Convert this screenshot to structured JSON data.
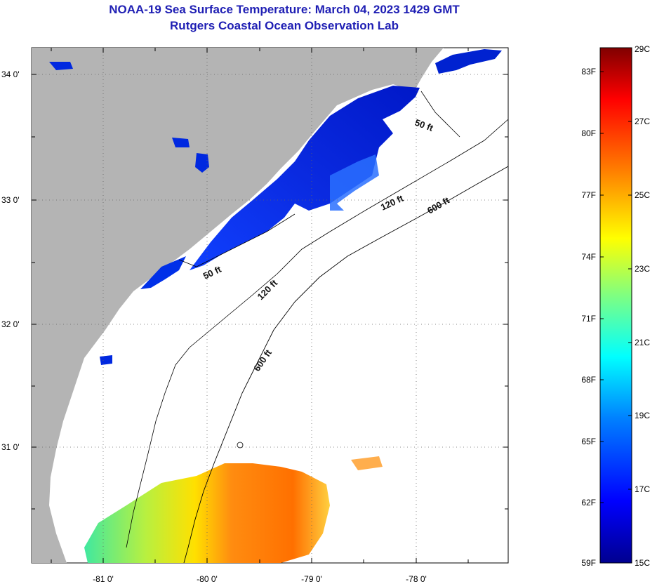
{
  "header": {
    "title": "NOAA-19 Sea Surface Temperature:  March 04, 2023 1429 GMT",
    "subtitle": "Rutgers Coastal Ocean Observation Lab"
  },
  "map": {
    "lat_labels": [
      "34 0'",
      "33 0'",
      "32 0'",
      "31 0'"
    ],
    "lon_labels": [
      "-81 0'",
      "-80 0'",
      "-79 0'",
      "-78 0'"
    ],
    "lat_values": [
      34,
      33,
      32,
      31
    ],
    "lon_values": [
      -81,
      -80,
      -79,
      -78
    ],
    "lat_range": [
      30.1,
      34.2
    ],
    "lon_range": [
      -81.65,
      -77.2
    ],
    "land_color": "#b4b4b4",
    "isobath_labels": [
      "50 ft",
      "120 ft",
      "600 ft",
      "50 ft",
      "120 ft",
      "600 ft"
    ]
  },
  "colorbar": {
    "fahrenheit_labels": [
      "83F",
      "80F",
      "77F",
      "74F",
      "71F",
      "68F",
      "65F",
      "62F",
      "59F"
    ],
    "celsius_labels": [
      "29C",
      "27C",
      "25C",
      "23C",
      "21C",
      "19C",
      "17C",
      "15C"
    ],
    "range_c": [
      15,
      29
    ],
    "colors": [
      "#00008f",
      "#0000ff",
      "#0080ff",
      "#00ffff",
      "#80ff80",
      "#ffff00",
      "#ff8000",
      "#ff0000",
      "#800000"
    ]
  }
}
